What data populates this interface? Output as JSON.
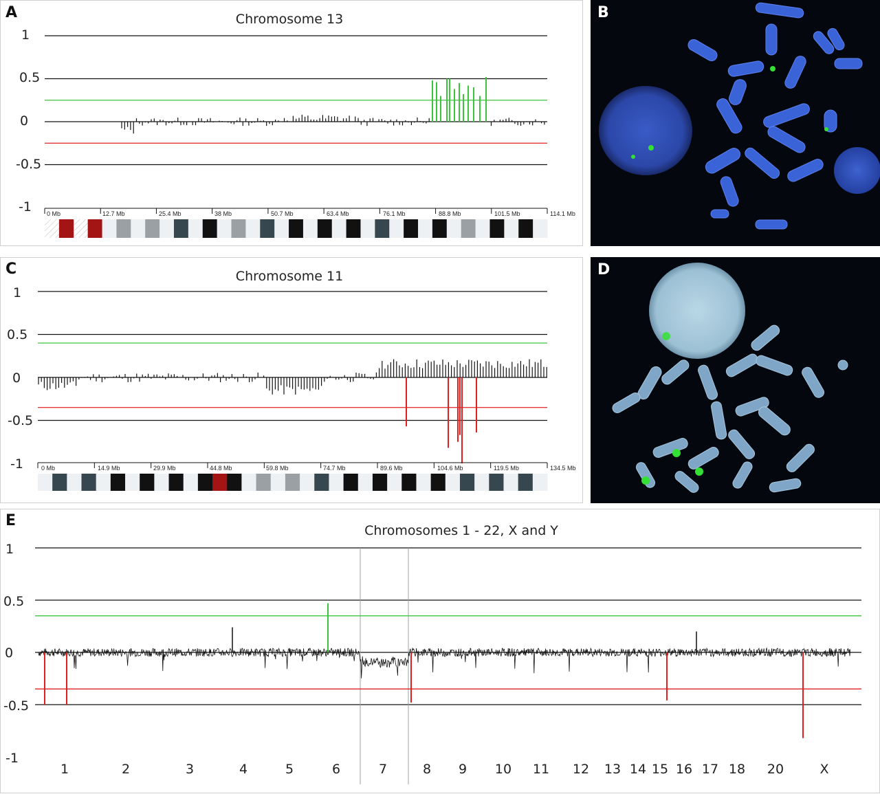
{
  "panelA": {
    "letter": "A",
    "title": "Chromosome 13",
    "yticks": [
      "1",
      "0.5",
      "0",
      "-0.5",
      "-1"
    ],
    "mb_labels": [
      "0 Mb",
      "12.7 Mb",
      "25.4 Mb",
      "38 Mb",
      "50.7 Mb",
      "63.4 Mb",
      "76.1 Mb",
      "88.8 Mb",
      "101.5 Mb",
      "114.1 Mb"
    ]
  },
  "panelB": {
    "letter": "B"
  },
  "panelC": {
    "letter": "C",
    "title": "Chromosome 11",
    "yticks": [
      "1",
      "0.5",
      "0",
      "-0.5",
      "-1"
    ],
    "mb_labels": [
      "0 Mb",
      "14.9 Mb",
      "29.9 Mb",
      "44.8 Mb",
      "59.8 Mb",
      "74.7 Mb",
      "89.6 Mb",
      "104.6 Mb",
      "119.5 Mb",
      "134.5 Mb"
    ]
  },
  "panelD": {
    "letter": "D"
  },
  "panelE": {
    "letter": "E",
    "title": "Chromosomes 1 - 22, X and Y",
    "yticks": [
      "1",
      "0.5",
      "0",
      "-0.5",
      "-1"
    ],
    "chrom_labels": [
      "1",
      "2",
      "3",
      "4",
      "5",
      "6",
      "7",
      "8",
      "9",
      "10",
      "11",
      "12",
      "13",
      "14",
      "15",
      "16",
      "17",
      "18",
      "20",
      "X"
    ]
  },
  "colors": {
    "gain": "#3cc43c",
    "loss": "#e02020",
    "axis": "#111111",
    "band_dark": "#111111",
    "band_slate": "#37474f",
    "band_grey": "#9aa0a3",
    "band_light": "#eef1f4",
    "centromere": "#a31515"
  },
  "chart_data": [
    {
      "type": "bar",
      "ylim": [
        -1,
        1
      ],
      "thresholds": {
        "gain": 0.25,
        "loss": -0.25
      },
      "xlim": [
        0,
        114.1
      ],
      "gain_values": [
        0.48,
        0.46,
        0.3,
        0.5,
        0.5,
        0.38,
        0.45,
        0.32,
        0.42,
        0.4,
        0.3,
        0.52
      ],
      "band_colors": [
        "hatch",
        "centromere",
        "hatch",
        "centromere",
        "light",
        "grey",
        "light",
        "grey",
        "light",
        "slate",
        "light",
        "dark",
        "light",
        "grey",
        "light",
        "slate",
        "light",
        "dark",
        "light",
        "dark",
        "light",
        "dark",
        "light",
        "slate",
        "light",
        "dark",
        "light",
        "dark",
        "light",
        "grey",
        "light",
        "dark",
        "light",
        "dark",
        "light"
      ]
    },
    {
      "type": "bar",
      "ylim": [
        -1,
        1
      ],
      "thresholds": {
        "gain": 0.4,
        "loss": -0.35
      },
      "xlim": [
        0,
        134.5
      ],
      "loss_values": [
        -0.57,
        -0.82,
        -0.75,
        -0.67,
        -1.0,
        -0.64
      ],
      "band_colors": [
        "light",
        "slate",
        "light",
        "slate",
        "light",
        "dark",
        "light",
        "dark",
        "light",
        "dark",
        "light",
        "dark",
        "centromere",
        "dark",
        "light",
        "grey",
        "light",
        "grey",
        "light",
        "slate",
        "light",
        "dark",
        "light",
        "dark",
        "light",
        "dark",
        "light",
        "dark",
        "light",
        "slate",
        "light",
        "slate",
        "light",
        "slate",
        "light"
      ]
    },
    {
      "type": "bar",
      "ylim": [
        -1,
        1
      ],
      "yticks": [
        1,
        0.5,
        0,
        -0.5,
        -1
      ],
      "thresholds": {
        "gain": 0.35,
        "loss": -0.35
      },
      "categories": [
        "1",
        "2",
        "3",
        "4",
        "5",
        "6",
        "7",
        "8",
        "9",
        "10",
        "11",
        "12",
        "13",
        "14",
        "15",
        "16",
        "17",
        "18",
        "20",
        "X"
      ],
      "gain_values": [
        0.47
      ],
      "loss_values": [
        -0.5,
        -0.5,
        -0.48,
        -0.46,
        -0.82
      ],
      "peak_values": [
        0.24,
        0.2
      ]
    }
  ]
}
